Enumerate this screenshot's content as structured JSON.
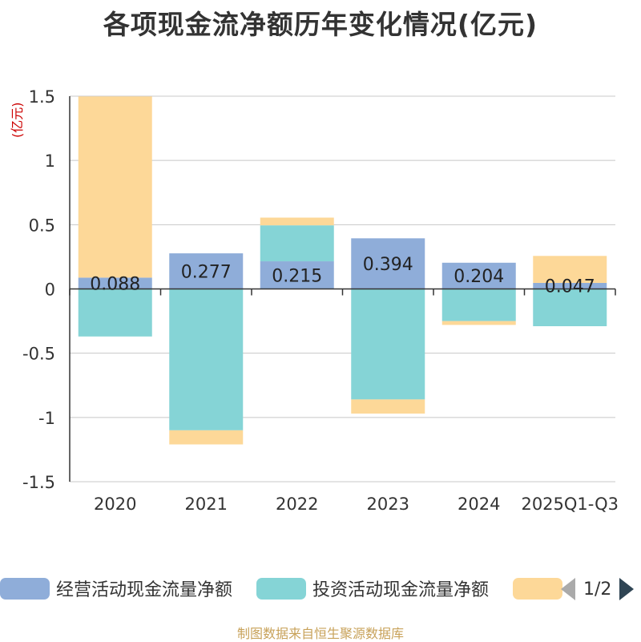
{
  "title": "各项现金流净额历年变化情况(亿元)",
  "unit_label": "(亿元)",
  "source": "制图数据来自恒生聚源数据库",
  "legend": {
    "items": [
      {
        "label": "经营活动现金流量净额",
        "color": "#8fadd9"
      },
      {
        "label": "投资活动现金流量净额",
        "color": "#85d4d6"
      },
      {
        "label": "",
        "color": "#fdd898"
      }
    ],
    "page": "1/2"
  },
  "chart_data": {
    "type": "bar",
    "stacked": true,
    "categories": [
      "2020",
      "2021",
      "2022",
      "2023",
      "2024",
      "2025Q1-Q3"
    ],
    "ylim": [
      -1.5,
      1.5
    ],
    "yticks": [
      -1.5,
      -1,
      -0.5,
      0,
      0.5,
      1,
      1.5
    ],
    "ytick_labels": [
      "-1.5",
      "-1",
      "-0.5",
      "0",
      "0.5",
      "1",
      "1.5"
    ],
    "grid": true,
    "legend_position": "bottom",
    "series": [
      {
        "name": "经营活动现金流量净额",
        "color": "#8fadd9",
        "values": [
          0.088,
          0.277,
          0.215,
          0.394,
          0.204,
          0.047
        ],
        "labels": [
          "0.088",
          "0.277",
          "0.215",
          "0.394",
          "0.204",
          "0.047"
        ]
      },
      {
        "name": "投资活动现金流量净额",
        "color": "#85d4d6",
        "values": [
          -0.37,
          -1.1,
          0.28,
          -0.86,
          -0.25,
          -0.29
        ]
      },
      {
        "name": "",
        "color": "#fdd898",
        "values": [
          1.41,
          -0.11,
          0.06,
          -0.11,
          -0.03,
          0.21
        ]
      }
    ]
  }
}
